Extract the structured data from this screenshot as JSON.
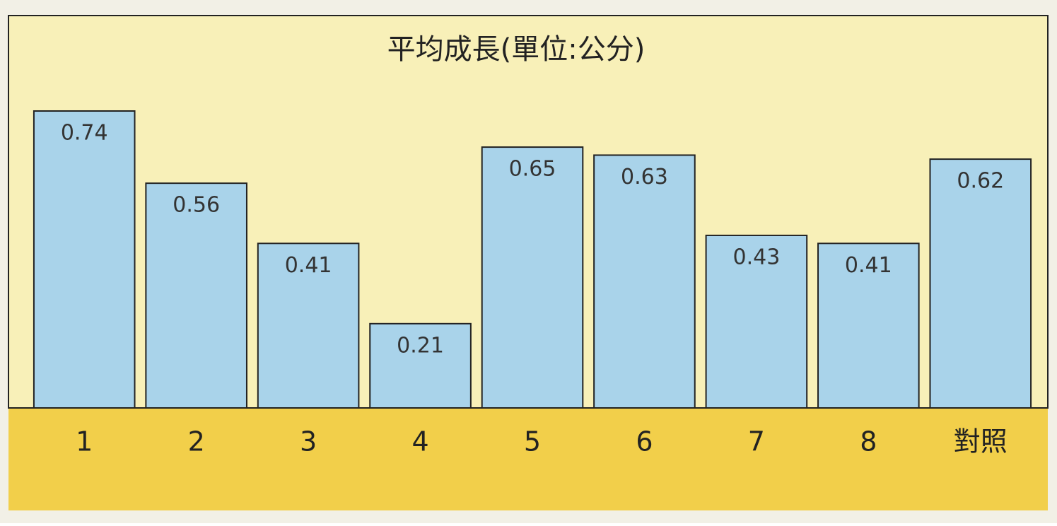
{
  "chart_data": {
    "type": "bar",
    "title": "平均成長(單位:公分)",
    "categories": [
      "1",
      "2",
      "3",
      "4",
      "5",
      "6",
      "7",
      "8",
      "對照"
    ],
    "values": [
      0.74,
      0.56,
      0.41,
      0.21,
      0.65,
      0.63,
      0.43,
      0.41,
      0.62
    ],
    "color": "#a9d3ea"
  }
}
